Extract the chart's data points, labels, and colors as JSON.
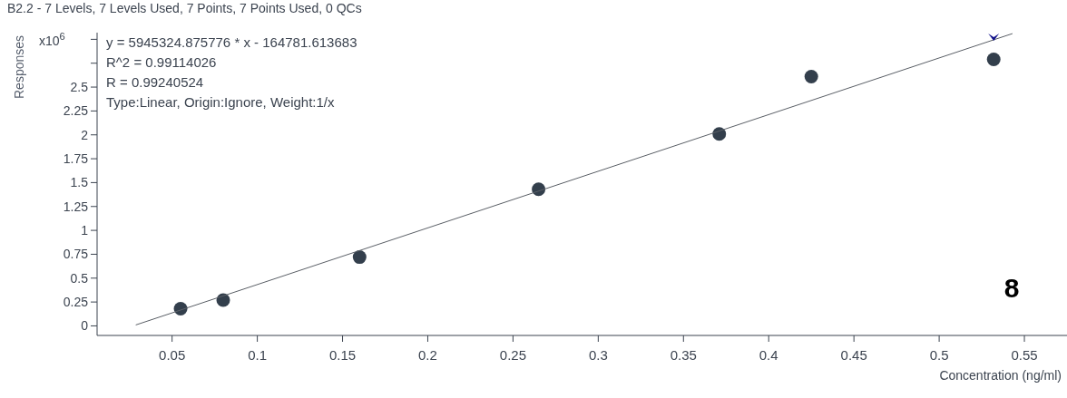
{
  "chart_data": {
    "type": "scatter",
    "title": "B2.2 - 7 Levels, 7 Levels Used, 7 Points, 7 Points Used, 0 QCs",
    "xlabel": "Concentration (ng/ml)",
    "ylabel": "Responses",
    "annotations": [
      "x10$^{6}$",
      "y = 5945324.875776 * x  - 164781.613683",
      "R^2 = 0.99114026",
      "R = 0.99240524",
      "Type:Linear, Origin:Ignore, Weight:1/x",
      "8"
    ],
    "series": [
      {
        "color": "#333f4c",
        "marker": "circle",
        "x": [
          0.055,
          0.08,
          0.16,
          0.265,
          0.371,
          0.425,
          0.532
        ],
        "values": [
          0.18,
          0.27,
          0.72,
          1.43,
          2.01,
          2.61,
          2.79
        ]
      },
      {
        "type": "line",
        "color": "#5a5f66",
        "marker": "none",
        "line_style": "solid",
        "x": [
          0.0287,
          0.543
        ],
        "values": [
          0.01,
          3.06
        ]
      }
    ],
    "xlim": [
      0.006,
      0.575
    ],
    "xticks": [
      0.05,
      0.1,
      0.15,
      0.2,
      0.25,
      0.3,
      0.35,
      0.4,
      0.45,
      0.5,
      0.55
    ],
    "ylim": [
      -0.1,
      3.07
    ],
    "yticks": [
      0,
      0.25,
      0.5,
      0.75,
      1,
      1.25,
      1.5,
      1.75,
      2,
      2.25,
      2.5,
      {
        "value": 2.75,
        "label": null
      },
      {
        "value": 3,
        "label": null
      }
    ],
    "grid": false
  }
}
